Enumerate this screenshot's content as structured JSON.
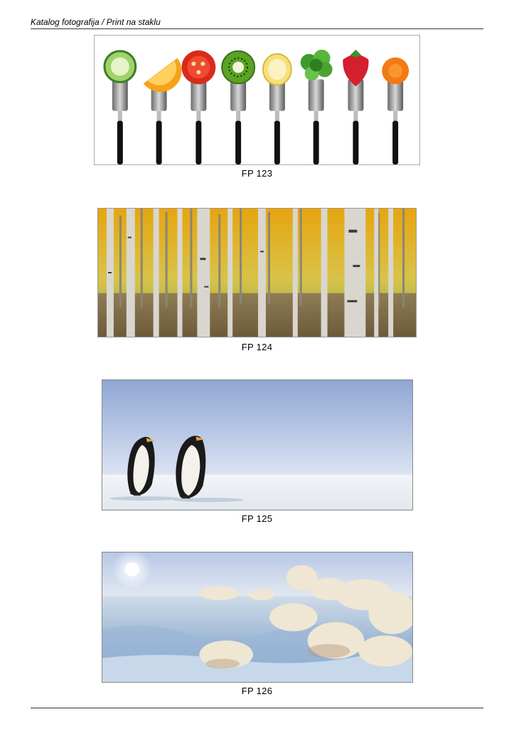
{
  "header": {
    "title": "Katalog fotografija / Print na staklu"
  },
  "products": [
    {
      "code": "FP 123",
      "subject": "fruits-on-forks"
    },
    {
      "code": "FP 124",
      "subject": "birch-forest"
    },
    {
      "code": "FP 125",
      "subject": "penguins"
    },
    {
      "code": "FP 126",
      "subject": "frosty-landscape"
    }
  ],
  "colors": {
    "rule": "#333333",
    "forest_yellow": "#e2a514",
    "sky_blue": "#8fa6d4",
    "frost_blue": "#b9cde4"
  }
}
